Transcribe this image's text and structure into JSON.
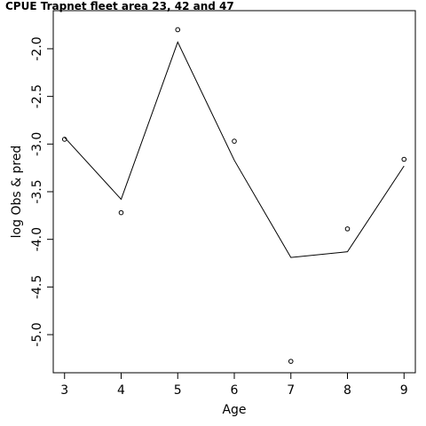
{
  "chart_data": {
    "type": "line",
    "title": "CPUE Trapnet fleet area 23, 42 and 47",
    "xlabel": "Age",
    "ylabel": "log Obs & pred",
    "xlim": [
      2.8,
      9.2
    ],
    "ylim": [
      -5.4,
      -1.6
    ],
    "x_ticks": [
      3,
      4,
      5,
      6,
      7,
      8,
      9
    ],
    "x_tick_labels": [
      "3",
      "4",
      "5",
      "6",
      "7",
      "8",
      "9"
    ],
    "y_ticks": [
      -2.0,
      -2.5,
      -3.0,
      -3.5,
      -4.0,
      -4.5,
      -5.0
    ],
    "y_tick_labels": [
      "-2.0",
      "-2.5",
      "-3.0",
      "-3.5",
      "-4.0",
      "-4.5",
      "-5.0"
    ],
    "grid": false,
    "series": [
      {
        "kind": "points",
        "x": [
          3,
          4,
          5,
          6,
          7,
          8,
          9
        ],
        "y": [
          -2.95,
          -3.72,
          -1.8,
          -2.97,
          -5.28,
          -3.89,
          -3.16
        ]
      },
      {
        "kind": "line",
        "x": [
          3,
          4,
          5,
          6,
          7,
          8,
          9
        ],
        "y": [
          -2.93,
          -3.58,
          -1.93,
          -3.17,
          -4.19,
          -4.13,
          -3.23
        ]
      }
    ]
  }
}
